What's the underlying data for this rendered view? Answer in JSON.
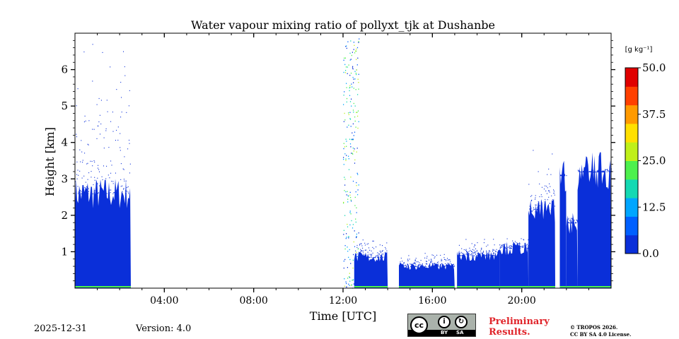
{
  "chart_data": {
    "type": "heatmap",
    "title": "Water vapour mixing ratio of pollyxt_tjk at Dushanbe",
    "xlabel": "Time [UTC]",
    "ylabel": "Height [km]",
    "xlim_hours": [
      0,
      24
    ],
    "ylim_km": [
      0,
      7
    ],
    "x_ticks": [
      {
        "value": 4,
        "label": "04:00"
      },
      {
        "value": 8,
        "label": "08:00"
      },
      {
        "value": 12,
        "label": "12:00"
      },
      {
        "value": 16,
        "label": "16:00"
      },
      {
        "value": 20,
        "label": "20:00"
      }
    ],
    "y_ticks": [
      {
        "value": 1,
        "label": "1"
      },
      {
        "value": 2,
        "label": "2"
      },
      {
        "value": 3,
        "label": "3"
      },
      {
        "value": 4,
        "label": "4"
      },
      {
        "value": 5,
        "label": "5"
      },
      {
        "value": 6,
        "label": "6"
      }
    ],
    "colorbar": {
      "label": "[g kg⁻¹]",
      "min": 0.0,
      "max": 50.0,
      "ticks": [
        {
          "value": 0.0,
          "label": "0.0"
        },
        {
          "value": 12.5,
          "label": "12.5"
        },
        {
          "value": 25.0,
          "label": "25.0"
        },
        {
          "value": 37.5,
          "label": "37.5"
        },
        {
          "value": 50.0,
          "label": "50.0"
        }
      ],
      "colormap": "jet",
      "colors": [
        "#0a2fd9",
        "#0060ff",
        "#00a6ff",
        "#14d9b3",
        "#4df04d",
        "#bff019",
        "#ffe000",
        "#ff9a00",
        "#ff4000",
        "#e00000"
      ]
    },
    "signal_regions": [
      {
        "start_hour": 0.0,
        "end_hour": 2.5,
        "dense_top_km": 2.6,
        "sparse_top_km": 6.8,
        "value_gkg": 2
      },
      {
        "start_hour": 12.0,
        "end_hour": 12.7,
        "dense_top_km": 0.3,
        "sparse_top_km": 6.9,
        "value_gkg": 15
      },
      {
        "start_hour": 12.5,
        "end_hour": 14.0,
        "dense_top_km": 0.85,
        "sparse_top_km": 1.4,
        "value_gkg": 2
      },
      {
        "start_hour": 14.5,
        "end_hour": 17.0,
        "dense_top_km": 0.6,
        "sparse_top_km": 1.0,
        "value_gkg": 2
      },
      {
        "start_hour": 17.1,
        "end_hour": 19.0,
        "dense_top_km": 0.9,
        "sparse_top_km": 1.4,
        "value_gkg": 2
      },
      {
        "start_hour": 19.0,
        "end_hour": 20.3,
        "dense_top_km": 1.1,
        "sparse_top_km": 1.4,
        "value_gkg": 2
      },
      {
        "start_hour": 20.3,
        "end_hour": 21.5,
        "dense_top_km": 2.1,
        "sparse_top_km": 4.0,
        "value_gkg": 2
      },
      {
        "start_hour": 21.7,
        "end_hour": 22.0,
        "dense_top_km": 3.1,
        "sparse_top_km": 3.2,
        "value_gkg": 2
      },
      {
        "start_hour": 22.0,
        "end_hour": 22.5,
        "dense_top_km": 1.8,
        "sparse_top_km": 2.0,
        "value_gkg": 2
      },
      {
        "start_hour": 22.5,
        "end_hour": 24.0,
        "dense_top_km": 3.2,
        "sparse_top_km": 3.3,
        "value_gkg": 2
      }
    ],
    "data_gaps_hours": [
      {
        "start": 17.0,
        "end": 17.1
      },
      {
        "start": 21.5,
        "end": 21.7
      }
    ]
  },
  "footer": {
    "date": "2025-12-31",
    "version": "Version: 4.0",
    "preliminary_line1": "Preliminary",
    "preliminary_line2": "Results.",
    "copyright_line1": "© TROPOS 2026.",
    "copyright_line2": "CC BY SA 4.0 License.",
    "license_badge": {
      "cc": "cc",
      "by": "BY",
      "sa": "SA"
    }
  }
}
